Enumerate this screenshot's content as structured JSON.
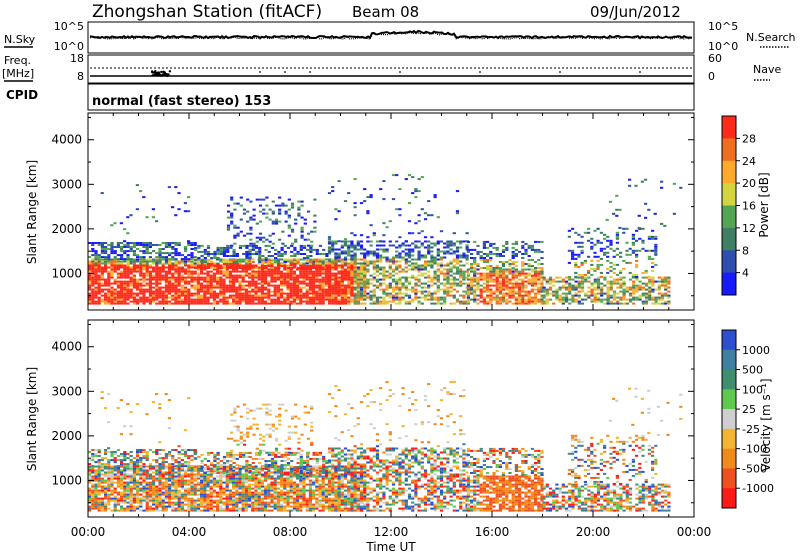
{
  "header": {
    "station": "Zhongshan Station (fitACF)",
    "beam": "Beam 08",
    "date": "09/Jun/2012"
  },
  "status_panel": {
    "left_labels": {
      "nsky": "N.Sky",
      "freq": "Freq.",
      "freq_unit": "[MHz]",
      "cpid": "CPID"
    },
    "right_labels": {
      "nsearch": "N.Search",
      "nave": "Nave"
    },
    "nsky_axis": {
      "top": "10^5",
      "bottom": "10^0"
    },
    "nsearch_axis": {
      "top": "10^5",
      "bottom": "10^0"
    },
    "freq_axis": {
      "top": "18",
      "bottom": "8"
    },
    "nave_axis": {
      "top": "60",
      "bottom": "0"
    },
    "cpid_text": "normal (fast stereo) 153"
  },
  "colors": {
    "power_scale": [
      "#1a1aff",
      "#2e4fb0",
      "#3f7f63",
      "#52a552",
      "#d4d440",
      "#ffaa2a",
      "#f06e1f",
      "#ff2a1a"
    ],
    "velocity_scale": [
      "#ff1a1a",
      "#f05020",
      "#f08a1a",
      "#f2b432",
      "#cfcfcf",
      "#5fc84f",
      "#3f8f6f",
      "#3f7fa0",
      "#2a4fd0"
    ]
  },
  "chart_data": [
    {
      "type": "heatmap",
      "title": "Power",
      "xlabel": "",
      "ylabel": "Slant Range [km]",
      "x_ticks": [
        "00:00",
        "04:00",
        "08:00",
        "12:00",
        "16:00",
        "20:00",
        "00:00"
      ],
      "xlim_hours": [
        0,
        24
      ],
      "y_ticks": [
        1000,
        2000,
        3000,
        4000
      ],
      "ylim_km": [
        180,
        4600
      ],
      "colorbar": {
        "label": "Power [dB]",
        "ticks": [
          4,
          8,
          12,
          16,
          20,
          24,
          28
        ],
        "range": [
          0,
          32
        ]
      },
      "grid": false
    },
    {
      "type": "heatmap",
      "title": "Velocity",
      "xlabel": "Time UT",
      "ylabel": "Slant Range [km]",
      "x_ticks": [
        "00:00",
        "04:00",
        "08:00",
        "12:00",
        "16:00",
        "20:00",
        "00:00"
      ],
      "xlim_hours": [
        0,
        24
      ],
      "y_ticks": [
        1000,
        2000,
        3000,
        4000
      ],
      "ylim_km": [
        180,
        4600
      ],
      "colorbar": {
        "label": "Velocity [m s⁻¹]",
        "ticks": [
          "1000",
          "500",
          "100",
          "25",
          "-25",
          "-100",
          "-500",
          "-1000"
        ]
      },
      "grid": false
    }
  ]
}
